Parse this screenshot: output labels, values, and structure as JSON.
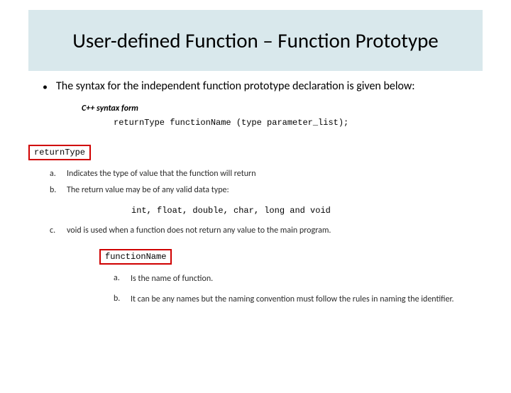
{
  "header": {
    "title": "User-defined Function – Function Prototype",
    "background_color": "#d9e8ec",
    "title_fontsize": 29
  },
  "bullet": {
    "marker": "•",
    "text": "The syntax for the independent function prototype declaration is given below:"
  },
  "syntax": {
    "label": "C++ syntax form",
    "line": "returnType functionName (type parameter_list);"
  },
  "box1": {
    "text": "returnType",
    "border_color": "#d00000"
  },
  "list1": {
    "items": [
      {
        "marker": "a.",
        "text": "Indicates the type of value that the function will return"
      },
      {
        "marker": "b.",
        "text": "The return value may be of any valid data type:"
      }
    ],
    "types_line": "int, float, double, char, long and void",
    "item_c": {
      "marker": "c.",
      "text": "void is used when a function does not return any value to the main program."
    }
  },
  "box2": {
    "text": "functionName",
    "border_color": "#d00000"
  },
  "list2": {
    "items": [
      {
        "marker": "a.",
        "text": "Is the name of function."
      },
      {
        "marker": "b.",
        "text": "It can be any names but the naming convention must follow the rules in naming the identifier."
      }
    ]
  }
}
